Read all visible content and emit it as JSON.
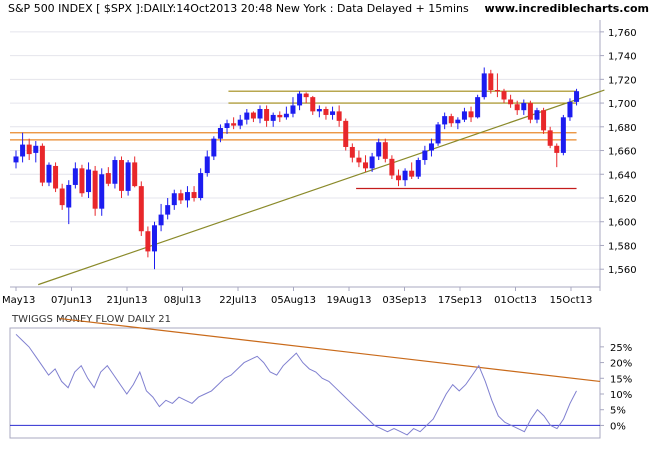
{
  "header": {
    "index_title": "S&P 500 INDEX [ $SPX ]:DAILY:14Oct2013 20:48 New York : Data Delayed + 15mins",
    "site": "www.incrediblecharts.com"
  },
  "colors": {
    "background": "#ffffff",
    "plot_background": "#ffffff",
    "up_candle": "#1c1cf0",
    "down_candle": "#e8272b",
    "resistance": "#a08a15",
    "support_band": "#e98a2c",
    "support_red": "#c41c1c",
    "trend": "#8a8a2a",
    "indicator_line": "#8080d0",
    "indicator_trend": "#c96a1a",
    "zero_line": "#2b2bd1",
    "axis": "#a8a8c0"
  },
  "chart_data": [
    {
      "type": "candlestick",
      "title": "S&P 500 INDEX [ $SPX ]:DAILY:14Oct2013 20:48 New York : Data Delayed + 15mins",
      "ylim": [
        1545,
        1770
      ],
      "y_ticks": [
        1560,
        1580,
        1600,
        1620,
        1640,
        1660,
        1680,
        1700,
        1720,
        1740,
        1760
      ],
      "y_tick_labels": [
        "1,560",
        "1,580",
        "1,600",
        "1,620",
        "1,640",
        "1,660",
        "1,680",
        "1,700",
        "1,720",
        "1,740",
        "1,760"
      ],
      "x_tick_labels": [
        "May13",
        "07Jun13",
        "21Jun13",
        "08Jul13",
        "22Jul13",
        "05Aug13",
        "19Aug13",
        "03Sep13",
        "17Sep13",
        "01Oct13",
        "15Oct13"
      ],
      "x_tick_bar_index": [
        0,
        10,
        20,
        30,
        40,
        50,
        60,
        70,
        80,
        90,
        100
      ],
      "grid": true,
      "ohlc": [
        [
          1650,
          1660,
          1645,
          1655
        ],
        [
          1655,
          1675,
          1650,
          1665
        ],
        [
          1665,
          1670,
          1652,
          1657
        ],
        [
          1658,
          1668,
          1650,
          1664
        ],
        [
          1664,
          1666,
          1630,
          1633
        ],
        [
          1633,
          1650,
          1630,
          1648
        ],
        [
          1647,
          1650,
          1625,
          1628
        ],
        [
          1628,
          1632,
          1610,
          1614
        ],
        [
          1612,
          1635,
          1598,
          1631
        ],
        [
          1631,
          1650,
          1628,
          1645
        ],
        [
          1645,
          1648,
          1621,
          1624
        ],
        [
          1625,
          1650,
          1620,
          1644
        ],
        [
          1643,
          1647,
          1605,
          1611
        ],
        [
          1611,
          1645,
          1605,
          1640
        ],
        [
          1641,
          1646,
          1630,
          1632
        ],
        [
          1632,
          1655,
          1628,
          1652
        ],
        [
          1652,
          1655,
          1620,
          1626
        ],
        [
          1626,
          1652,
          1622,
          1650
        ],
        [
          1650,
          1655,
          1629,
          1630
        ],
        [
          1630,
          1634,
          1588,
          1592
        ],
        [
          1592,
          1596,
          1570,
          1575
        ],
        [
          1575,
          1600,
          1560,
          1597
        ],
        [
          1597,
          1615,
          1592,
          1606
        ],
        [
          1606,
          1620,
          1602,
          1614
        ],
        [
          1614,
          1627,
          1610,
          1624
        ],
        [
          1624,
          1627,
          1615,
          1618
        ],
        [
          1618,
          1630,
          1612,
          1625
        ],
        [
          1625,
          1630,
          1617,
          1620
        ],
        [
          1620,
          1645,
          1618,
          1641
        ],
        [
          1641,
          1660,
          1638,
          1655
        ],
        [
          1655,
          1672,
          1652,
          1670
        ],
        [
          1670,
          1682,
          1667,
          1679
        ],
        [
          1679,
          1686,
          1674,
          1683
        ],
        [
          1683,
          1688,
          1678,
          1681
        ],
        [
          1681,
          1690,
          1678,
          1686
        ],
        [
          1686,
          1695,
          1682,
          1692
        ],
        [
          1692,
          1693,
          1684,
          1687
        ],
        [
          1687,
          1698,
          1683,
          1695
        ],
        [
          1695,
          1698,
          1680,
          1685
        ],
        [
          1685,
          1692,
          1680,
          1690
        ],
        [
          1690,
          1693,
          1684,
          1688
        ],
        [
          1688,
          1697,
          1686,
          1691
        ],
        [
          1691,
          1705,
          1688,
          1698
        ],
        [
          1698,
          1710,
          1694,
          1708
        ],
        [
          1708,
          1709,
          1700,
          1705
        ],
        [
          1705,
          1706,
          1690,
          1693
        ],
        [
          1693,
          1698,
          1688,
          1695
        ],
        [
          1695,
          1697,
          1686,
          1690
        ],
        [
          1690,
          1697,
          1686,
          1693
        ],
        [
          1693,
          1698,
          1680,
          1685
        ],
        [
          1685,
          1687,
          1660,
          1663
        ],
        [
          1663,
          1666,
          1650,
          1654
        ],
        [
          1654,
          1660,
          1646,
          1650
        ],
        [
          1650,
          1656,
          1642,
          1645
        ],
        [
          1645,
          1658,
          1642,
          1655
        ],
        [
          1655,
          1670,
          1652,
          1667
        ],
        [
          1667,
          1670,
          1650,
          1653
        ],
        [
          1653,
          1656,
          1636,
          1639
        ],
        [
          1639,
          1644,
          1630,
          1635
        ],
        [
          1635,
          1645,
          1630,
          1643
        ],
        [
          1643,
          1650,
          1636,
          1638
        ],
        [
          1638,
          1654,
          1636,
          1652
        ],
        [
          1652,
          1664,
          1648,
          1660
        ],
        [
          1660,
          1670,
          1655,
          1666
        ],
        [
          1666,
          1684,
          1664,
          1682
        ],
        [
          1682,
          1692,
          1678,
          1689
        ],
        [
          1689,
          1691,
          1680,
          1683
        ],
        [
          1683,
          1688,
          1678,
          1686
        ],
        [
          1686,
          1696,
          1684,
          1693
        ],
        [
          1693,
          1697,
          1684,
          1688
        ],
        [
          1688,
          1707,
          1687,
          1705
        ],
        [
          1705,
          1730,
          1703,
          1725
        ],
        [
          1725,
          1728,
          1708,
          1711
        ],
        [
          1711,
          1725,
          1705,
          1710
        ],
        [
          1710,
          1712,
          1700,
          1703
        ],
        [
          1703,
          1707,
          1696,
          1699
        ],
        [
          1699,
          1702,
          1690,
          1694
        ],
        [
          1694,
          1703,
          1690,
          1700
        ],
        [
          1700,
          1702,
          1683,
          1686
        ],
        [
          1686,
          1696,
          1683,
          1694
        ],
        [
          1694,
          1696,
          1674,
          1677
        ],
        [
          1677,
          1680,
          1662,
          1664
        ],
        [
          1664,
          1666,
          1646,
          1658
        ],
        [
          1658,
          1690,
          1656,
          1688
        ],
        [
          1688,
          1704,
          1685,
          1701
        ],
        [
          1701,
          1712,
          1698,
          1710
        ]
      ],
      "horizontal_lines": [
        {
          "name": "resistance",
          "value": 1710
        },
        {
          "name": "resistance",
          "value": 1700
        },
        {
          "name": "support",
          "value": 1675
        },
        {
          "name": "support",
          "value": 1669
        },
        {
          "name": "support",
          "value": 1628
        }
      ],
      "trendline": {
        "from": {
          "bar": 4,
          "value": 1547
        },
        "to": {
          "bar": 88,
          "value": 1682
        }
      }
    },
    {
      "type": "line",
      "title": "TWIGGS MONEY FLOW DAILY 21",
      "ylim": [
        -4,
        31
      ],
      "y_ticks": [
        0,
        5,
        10,
        15,
        20,
        25
      ],
      "y_tick_labels": [
        "0%",
        "5%",
        "10%",
        "15%",
        "20%",
        "25%"
      ],
      "values": [
        29,
        27,
        25,
        22,
        19,
        16,
        18,
        14,
        12,
        17,
        19,
        15,
        12,
        17,
        19,
        16,
        13,
        10,
        13,
        17,
        11,
        9,
        6,
        8,
        7,
        9,
        8,
        7,
        9,
        10,
        11,
        13,
        15,
        16,
        18,
        20,
        21,
        22,
        20,
        17,
        16,
        19,
        21,
        23,
        20,
        18,
        17,
        15,
        14,
        12,
        10,
        8,
        6,
        4,
        2,
        0,
        -1,
        -2,
        -1,
        -2,
        -3,
        -1,
        -2,
        0,
        2,
        6,
        10,
        13,
        11,
        13,
        16,
        19,
        14,
        8,
        3,
        1,
        0,
        -1,
        -2,
        2,
        5,
        3,
        0,
        -1,
        2,
        7,
        11
      ],
      "trendline": {
        "from": {
          "bar": 20,
          "value": 34
        },
        "to": {
          "bar": 103,
          "value": 14
        }
      }
    }
  ]
}
